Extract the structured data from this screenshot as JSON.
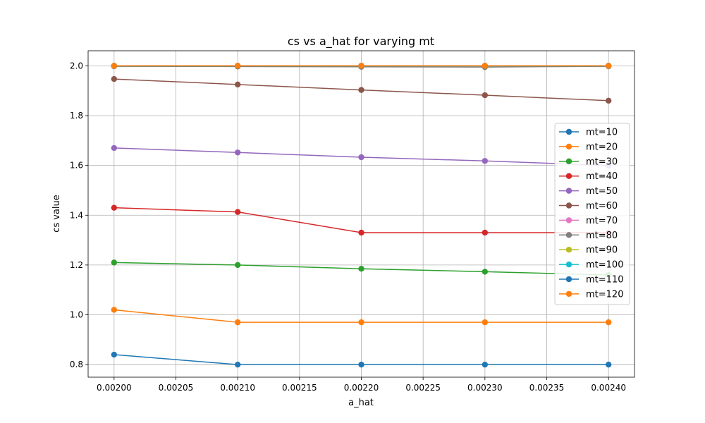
{
  "chart_data": {
    "type": "line",
    "title": "cs vs a_hat for varying mt",
    "xlabel": "a_hat",
    "ylabel": "cs value",
    "xlim": [
      0.001979,
      0.002421
    ],
    "ylim": [
      0.7495,
      2.0605
    ],
    "grid": true,
    "legend_position": "center-right",
    "x_ticks": [
      "0.00200",
      "0.00205",
      "0.00210",
      "0.00215",
      "0.00220",
      "0.00225",
      "0.00230",
      "0.00235",
      "0.00240"
    ],
    "y_ticks": [
      "0.8",
      "1.0",
      "1.2",
      "1.4",
      "1.6",
      "1.8",
      "2.0"
    ],
    "x": [
      0.002,
      0.0021,
      0.0022,
      0.0023,
      0.0024
    ],
    "series": [
      {
        "name": "mt=10",
        "color": "#1f77b4",
        "values": [
          0.84,
          0.8,
          0.8,
          0.8,
          0.8
        ]
      },
      {
        "name": "mt=20",
        "color": "#ff7f0e",
        "values": [
          1.02,
          0.97,
          0.97,
          0.97,
          0.97
        ]
      },
      {
        "name": "mt=30",
        "color": "#2ca02c",
        "values": [
          1.21,
          1.2,
          1.185,
          1.173,
          1.16
        ]
      },
      {
        "name": "mt=40",
        "color": "#d62728",
        "values": [
          1.43,
          1.413,
          1.33,
          1.33,
          1.33
        ]
      },
      {
        "name": "mt=50",
        "color": "#9467bd",
        "values": [
          1.67,
          1.652,
          1.633,
          1.618,
          1.6
        ]
      },
      {
        "name": "mt=60",
        "color": "#8c564b",
        "values": [
          1.947,
          1.925,
          1.903,
          1.882,
          1.86
        ]
      },
      {
        "name": "mt=70",
        "color": "#e377c2",
        "values": [
          2.0,
          2.0,
          2.0,
          2.0,
          2.0
        ]
      },
      {
        "name": "mt=80",
        "color": "#7f7f7f",
        "values": [
          1.998,
          1.997,
          1.996,
          1.995,
          1.998
        ]
      },
      {
        "name": "mt=90",
        "color": "#bcbd22",
        "values": [
          2.0,
          2.0,
          2.0,
          2.0,
          2.0
        ]
      },
      {
        "name": "mt=100",
        "color": "#17becf",
        "values": [
          2.0,
          2.0,
          2.0,
          2.0,
          2.0
        ]
      },
      {
        "name": "mt=110",
        "color": "#1f77b4",
        "values": [
          2.0,
          2.0,
          2.0,
          2.0,
          2.0
        ]
      },
      {
        "name": "mt=120",
        "color": "#ff7f0e",
        "values": [
          2.0,
          2.0,
          2.0,
          2.0,
          2.0
        ]
      }
    ]
  }
}
